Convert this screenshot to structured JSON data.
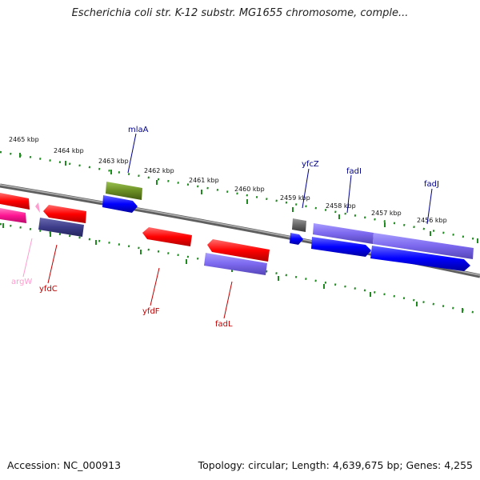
{
  "title": "Escherichia coli str. K-12 substr. MG1655 chromosome, comple...",
  "footer": {
    "accession": "Accession: NC_000913",
    "topology": "Topology: circular; Length: 4,639,675 bp; Genes: 4,255"
  },
  "colors": {
    "backbone": "#7a7a7a",
    "ticks": "#1f8a1f",
    "forward_gene": "#0000ff",
    "reverse_gene": "#ff0000",
    "rna_gene": "#ff1493",
    "purple_gene": "#7b68ee",
    "dark_gene": "#3c3c8a",
    "olive_gene": "#6b8e23",
    "gray_gene": "#666666"
  },
  "scale_labels": [
    "2465 kbp",
    "2464 kbp",
    "2463 kbp",
    "2462 kbp",
    "2461 kbp",
    "2460 kbp",
    "2459 kbp",
    "2458 kbp",
    "2457 kbp",
    "2456 kbp"
  ],
  "gene_labels": {
    "mlaA": "mlaA",
    "yfcZ": "yfcZ",
    "fadI": "fadI",
    "fadJ": "fadJ",
    "argW": "argW",
    "yfdC": "yfdC",
    "yfdF": "yfdF",
    "fadL": "fadL"
  }
}
